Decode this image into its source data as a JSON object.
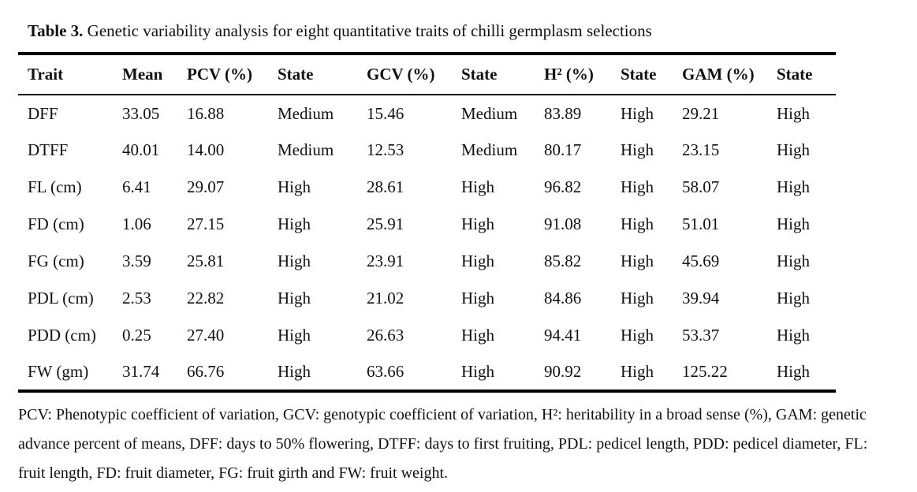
{
  "title": {
    "label": "Table 3.",
    "text": "Genetic variability analysis for eight quantitative traits of chilli germplasm selections"
  },
  "table": {
    "columns": [
      "Trait",
      "Mean",
      "PCV (%)",
      "State",
      "GCV (%)",
      "State",
      "H² (%)",
      "State",
      "GAM (%)",
      "State"
    ],
    "rows": [
      [
        "DFF",
        "33.05",
        "16.88",
        "Medium",
        "15.46",
        "Medium",
        "83.89",
        "High",
        "29.21",
        "High"
      ],
      [
        "DTFF",
        "40.01",
        "14.00",
        "Medium",
        "12.53",
        "Medium",
        "80.17",
        "High",
        "23.15",
        "High"
      ],
      [
        "FL (cm)",
        "6.41",
        "29.07",
        "High",
        "28.61",
        "High",
        "96.82",
        "High",
        "58.07",
        "High"
      ],
      [
        "FD (cm)",
        "1.06",
        "27.15",
        "High",
        "25.91",
        "High",
        "91.08",
        "High",
        "51.01",
        "High"
      ],
      [
        "FG (cm)",
        "3.59",
        "25.81",
        "High",
        "23.91",
        "High",
        "85.82",
        "High",
        "45.69",
        "High"
      ],
      [
        "PDL (cm)",
        "2.53",
        "22.82",
        "High",
        "21.02",
        "High",
        "84.86",
        "High",
        "39.94",
        "High"
      ],
      [
        "PDD (cm)",
        "0.25",
        "27.40",
        "High",
        "26.63",
        "High",
        "94.41",
        "High",
        "53.37",
        "High"
      ],
      [
        "FW (gm)",
        "31.74",
        "66.76",
        "High",
        "63.66",
        "High",
        "90.92",
        "High",
        "125.22",
        "High"
      ]
    ]
  },
  "footnote": "PCV: Phenotypic coefficient of variation, GCV: genotypic coefficient of variation, H²: heritability in a broad sense (%), GAM: genetic advance percent of means, DFF: days to 50% flowering, DTFF: days to first fruiting, PDL: pedicel length, PDD: pedicel diameter, FL: fruit length, FD: fruit diameter, FG: fruit girth and FW: fruit weight."
}
